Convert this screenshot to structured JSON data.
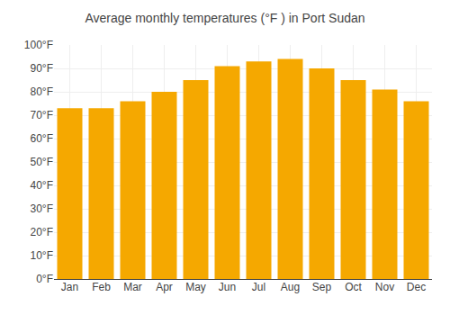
{
  "chart_data": {
    "type": "bar",
    "title": "Average monthly temperatures (°F ) in Port Sudan",
    "categories": [
      "Jan",
      "Feb",
      "Mar",
      "Apr",
      "May",
      "Jun",
      "Jul",
      "Aug",
      "Sep",
      "Oct",
      "Nov",
      "Dec"
    ],
    "values": [
      73,
      73,
      76,
      80,
      85,
      91,
      93,
      94,
      90,
      85,
      81,
      76
    ],
    "color": "#F5A800",
    "ylim": [
      0,
      100
    ],
    "yticks": [
      {
        "value": 0,
        "label": "0°F"
      },
      {
        "value": 10,
        "label": "10°F"
      },
      {
        "value": 20,
        "label": "20°F"
      },
      {
        "value": 30,
        "label": "30°F"
      },
      {
        "value": 40,
        "label": "40°F"
      },
      {
        "value": 50,
        "label": "50°F"
      },
      {
        "value": 60,
        "label": "60°F"
      },
      {
        "value": 70,
        "label": "70°F"
      },
      {
        "value": 80,
        "label": "80°F"
      },
      {
        "value": 90,
        "label": "90°F"
      },
      {
        "value": 100,
        "label": "100°F"
      }
    ],
    "grid": true
  }
}
